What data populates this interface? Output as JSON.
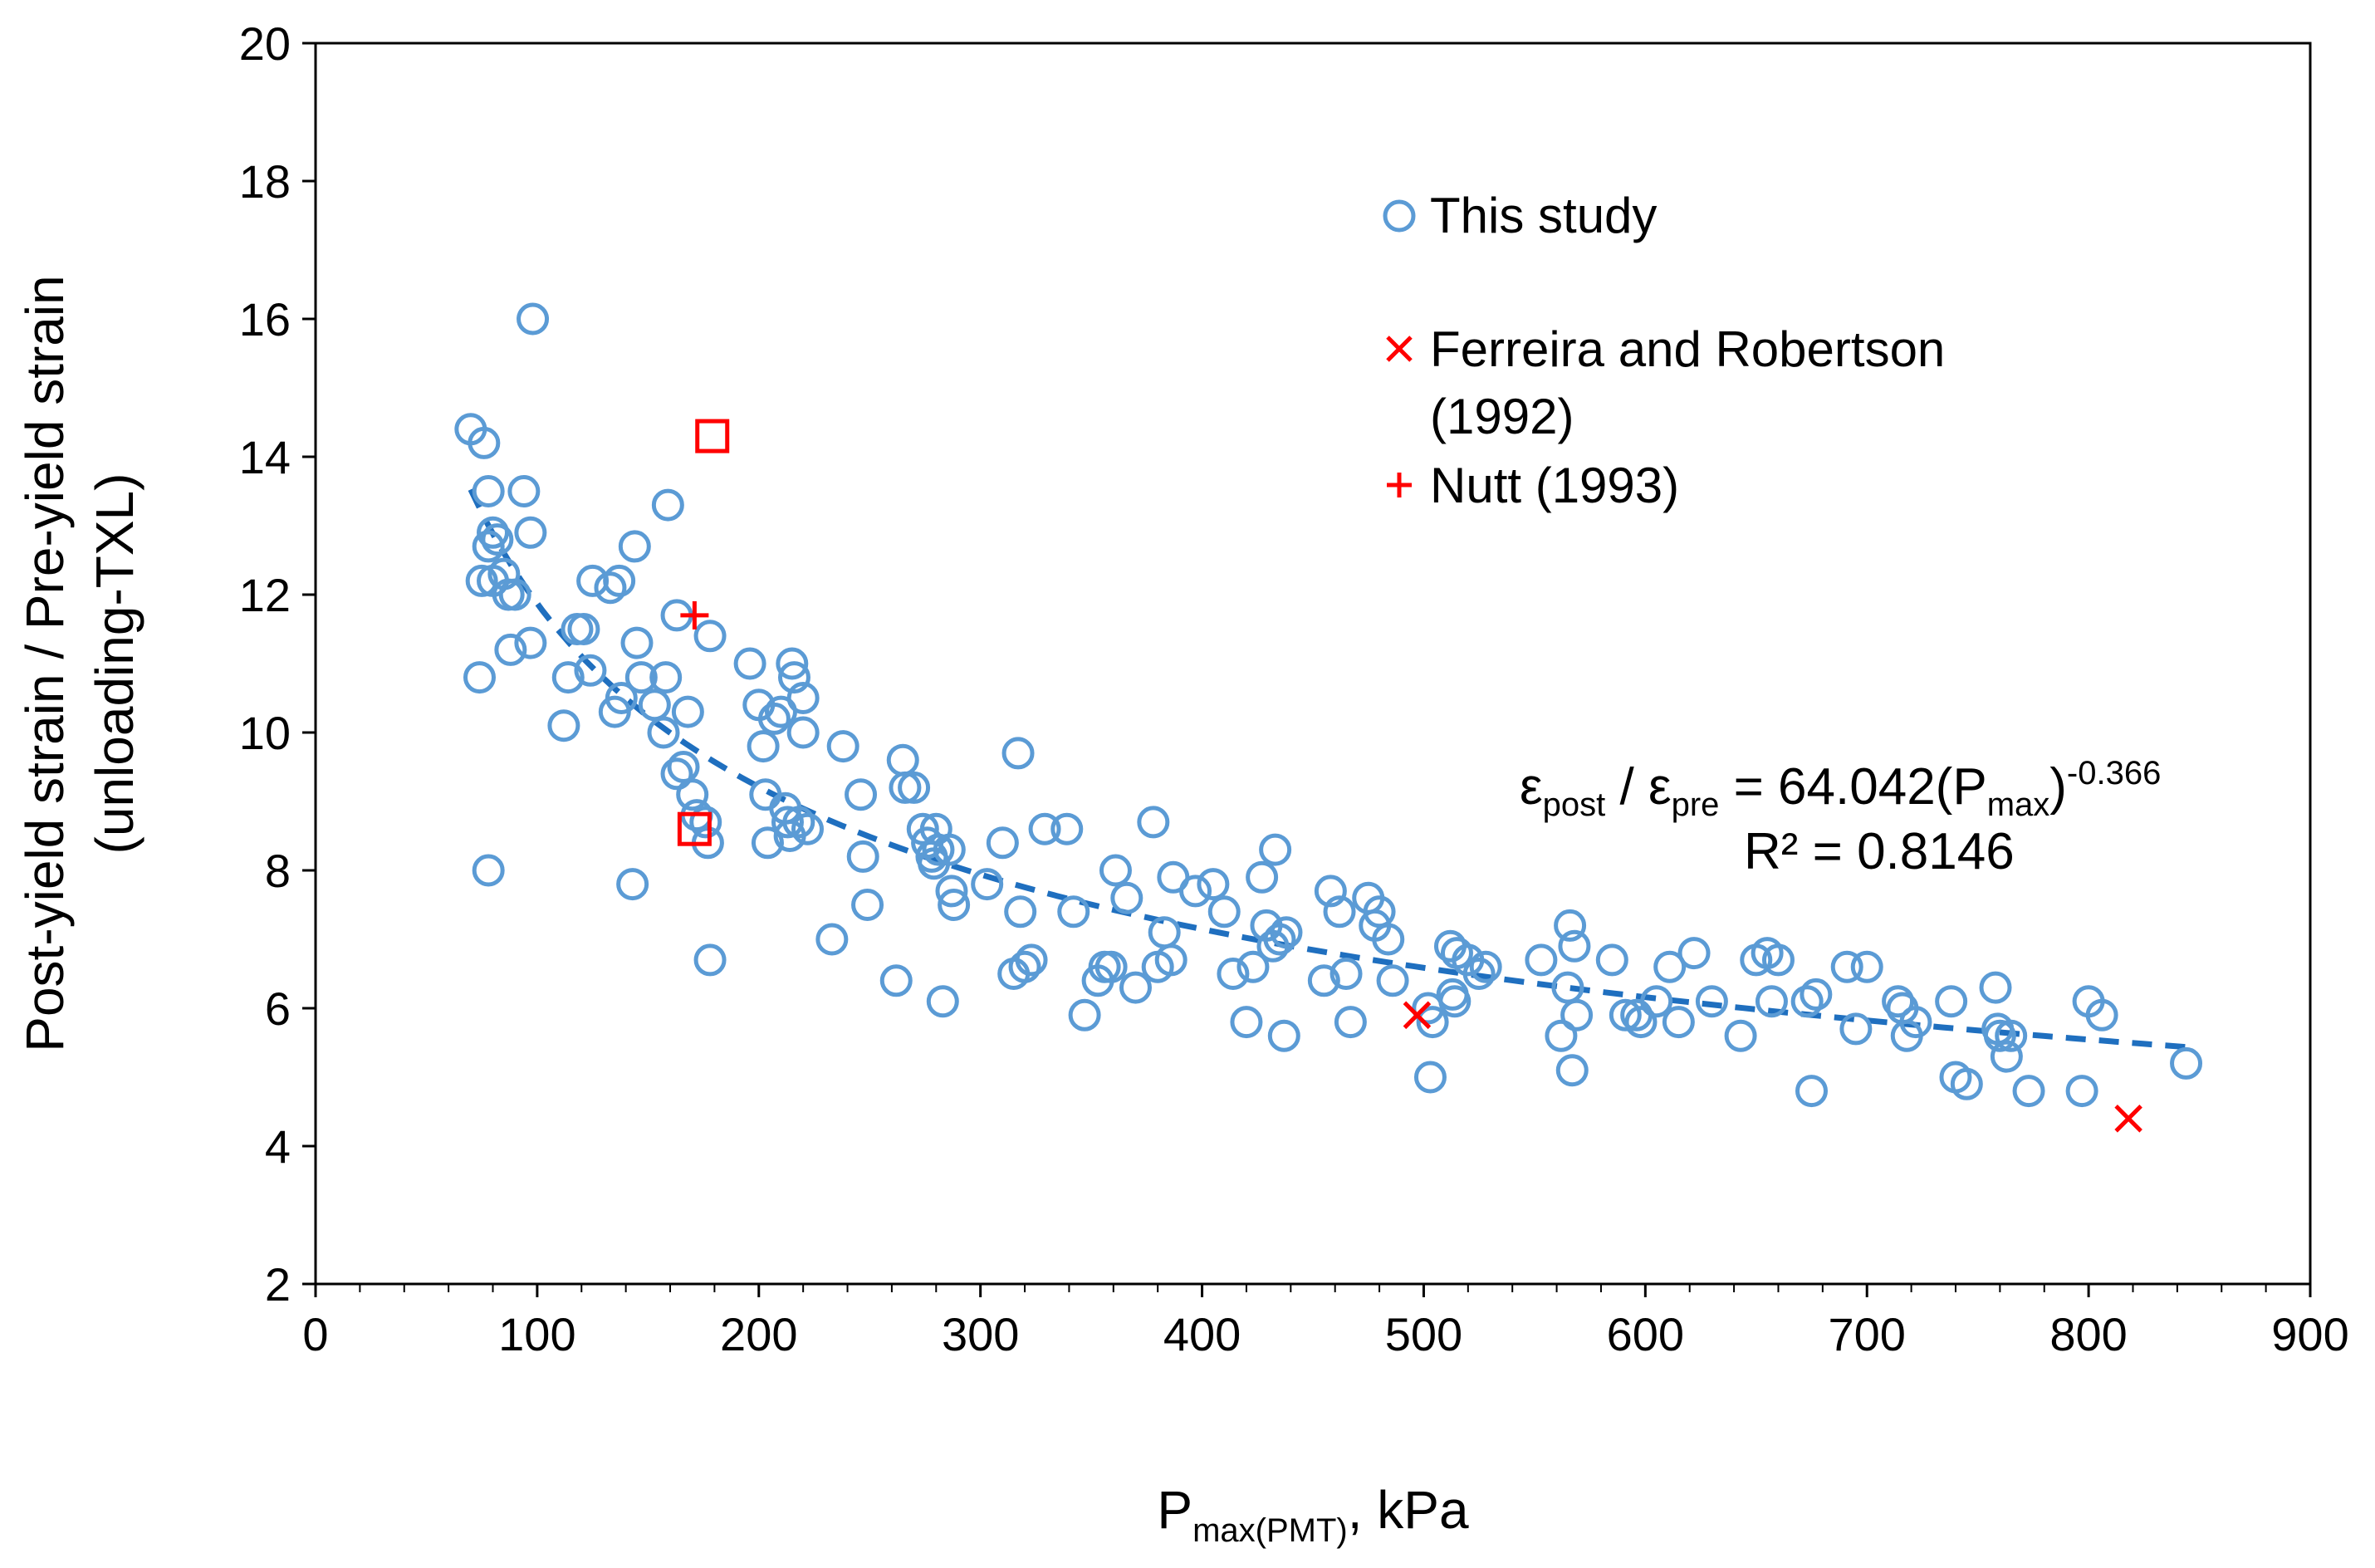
{
  "chart_data": {
    "type": "scatter",
    "title": "",
    "xlabel": {
      "main": "P",
      "sub": "max(PMT)",
      "suffix": ", kPa"
    },
    "ylabel": [
      "Post-yield strain / Pre-yield strain",
      "(unloading-TXL)"
    ],
    "xlim": [
      0,
      900
    ],
    "ylim": [
      2,
      20
    ],
    "xticks": [
      "0",
      "100",
      "200",
      "300",
      "400",
      "500",
      "600",
      "700",
      "800",
      "900"
    ],
    "yticks": [
      "2",
      "4",
      "6",
      "8",
      "10",
      "12",
      "14",
      "16",
      "18",
      "20"
    ],
    "grid": false,
    "legend_position": "top-right",
    "colors": {
      "study": "#5b9bd5",
      "trend": "#1f6fbf",
      "reference": "#ff0000"
    },
    "series": [
      {
        "name": "This study",
        "marker": "circle",
        "points": [
          [
            70,
            14.4
          ],
          [
            76,
            14.2
          ],
          [
            78,
            13.5
          ],
          [
            80,
            12.9
          ],
          [
            82,
            12.8
          ],
          [
            78,
            12.7
          ],
          [
            75,
            12.2
          ],
          [
            80,
            12.2
          ],
          [
            85,
            12.3
          ],
          [
            87,
            12.0
          ],
          [
            90,
            12.0
          ],
          [
            94,
            13.5
          ],
          [
            97,
            12.9
          ],
          [
            98,
            16.0
          ],
          [
            74,
            10.8
          ],
          [
            78,
            8.0
          ],
          [
            88,
            11.2
          ],
          [
            97,
            11.3
          ],
          [
            112,
            10.1
          ],
          [
            114,
            10.8
          ],
          [
            118,
            11.5
          ],
          [
            121,
            11.5
          ],
          [
            124,
            10.9
          ],
          [
            125,
            12.2
          ],
          [
            133,
            12.1
          ],
          [
            137,
            12.2
          ],
          [
            135,
            10.3
          ],
          [
            138,
            10.5
          ],
          [
            143,
            7.8
          ],
          [
            144,
            12.7
          ],
          [
            145,
            11.3
          ],
          [
            147,
            10.8
          ],
          [
            153,
            10.4
          ],
          [
            157,
            10.0
          ],
          [
            158,
            10.8
          ],
          [
            159,
            13.3
          ],
          [
            163,
            11.7
          ],
          [
            163,
            9.4
          ],
          [
            166,
            9.5
          ],
          [
            168,
            10.3
          ],
          [
            170,
            9.1
          ],
          [
            172,
            8.8
          ],
          [
            176,
            8.7
          ],
          [
            177,
            8.4
          ],
          [
            178,
            6.7
          ],
          [
            178,
            11.4
          ],
          [
            196,
            11.0
          ],
          [
            200,
            10.4
          ],
          [
            202,
            9.8
          ],
          [
            203,
            9.1
          ],
          [
            204,
            8.4
          ],
          [
            207,
            10.2
          ],
          [
            210,
            10.3
          ],
          [
            212,
            8.9
          ],
          [
            213,
            8.7
          ],
          [
            214,
            8.5
          ],
          [
            215,
            11.0
          ],
          [
            216,
            10.8
          ],
          [
            218,
            8.7
          ],
          [
            220,
            10.5
          ],
          [
            222,
            8.6
          ],
          [
            220,
            10.0
          ],
          [
            238,
            9.8
          ],
          [
            233,
            7.0
          ],
          [
            246,
            9.1
          ],
          [
            247,
            8.2
          ],
          [
            249,
            7.5
          ],
          [
            262,
            6.4
          ],
          [
            265,
            9.6
          ],
          [
            266,
            9.2
          ],
          [
            270,
            9.2
          ],
          [
            274,
            8.6
          ],
          [
            276,
            8.4
          ],
          [
            278,
            8.2
          ],
          [
            279,
            8.1
          ],
          [
            280,
            8.6
          ],
          [
            281,
            8.3
          ],
          [
            283,
            6.1
          ],
          [
            286,
            8.3
          ],
          [
            287,
            7.7
          ],
          [
            288,
            7.5
          ],
          [
            303,
            7.8
          ],
          [
            310,
            8.4
          ],
          [
            315,
            6.5
          ],
          [
            317,
            9.7
          ],
          [
            318,
            7.4
          ],
          [
            320,
            6.6
          ],
          [
            323,
            6.7
          ],
          [
            329,
            8.6
          ],
          [
            339,
            8.6
          ],
          [
            342,
            7.4
          ],
          [
            347,
            5.9
          ],
          [
            353,
            6.4
          ],
          [
            356,
            6.6
          ],
          [
            359,
            6.6
          ],
          [
            361,
            8.0
          ],
          [
            366,
            7.6
          ],
          [
            370,
            6.3
          ],
          [
            378,
            8.7
          ],
          [
            380,
            6.6
          ],
          [
            383,
            7.1
          ],
          [
            386,
            6.7
          ],
          [
            387,
            7.9
          ],
          [
            397,
            7.7
          ],
          [
            405,
            7.8
          ],
          [
            410,
            7.4
          ],
          [
            414,
            6.5
          ],
          [
            420,
            5.8
          ],
          [
            423,
            6.6
          ],
          [
            427,
            7.9
          ],
          [
            429,
            7.2
          ],
          [
            432,
            6.9
          ],
          [
            433,
            8.3
          ],
          [
            435,
            7.0
          ],
          [
            437,
            5.6
          ],
          [
            438,
            7.1
          ],
          [
            455,
            6.4
          ],
          [
            458,
            7.7
          ],
          [
            462,
            7.4
          ],
          [
            465,
            6.5
          ],
          [
            467,
            5.8
          ],
          [
            475,
            7.6
          ],
          [
            478,
            7.2
          ],
          [
            480,
            7.4
          ],
          [
            484,
            7.0
          ],
          [
            486,
            6.4
          ],
          [
            502,
            6.0
          ],
          [
            503,
            5.0
          ],
          [
            504,
            5.8
          ],
          [
            512,
            6.9
          ],
          [
            513,
            6.2
          ],
          [
            514,
            6.1
          ],
          [
            515,
            6.8
          ],
          [
            520,
            6.7
          ],
          [
            525,
            6.5
          ],
          [
            528,
            6.6
          ],
          [
            553,
            6.7
          ],
          [
            562,
            5.6
          ],
          [
            565,
            6.3
          ],
          [
            566,
            7.2
          ],
          [
            567,
            5.1
          ],
          [
            568,
            6.9
          ],
          [
            569,
            5.9
          ],
          [
            585,
            6.7
          ],
          [
            591,
            5.9
          ],
          [
            596,
            5.9
          ],
          [
            598,
            5.8
          ],
          [
            605,
            6.1
          ],
          [
            611,
            6.6
          ],
          [
            615,
            5.8
          ],
          [
            622,
            6.8
          ],
          [
            630,
            6.1
          ],
          [
            643,
            5.6
          ],
          [
            650,
            6.7
          ],
          [
            655,
            6.8
          ],
          [
            657,
            6.1
          ],
          [
            660,
            6.7
          ],
          [
            673,
            6.1
          ],
          [
            675,
            4.8
          ],
          [
            677,
            6.2
          ],
          [
            691,
            6.6
          ],
          [
            695,
            5.7
          ],
          [
            700,
            6.6
          ],
          [
            714,
            6.1
          ],
          [
            716,
            6.0
          ],
          [
            718,
            5.6
          ],
          [
            722,
            5.8
          ],
          [
            738,
            6.1
          ],
          [
            740,
            5.0
          ],
          [
            745,
            4.9
          ],
          [
            758,
            6.3
          ],
          [
            759,
            5.7
          ],
          [
            760,
            5.6
          ],
          [
            763,
            5.3
          ],
          [
            765,
            5.6
          ],
          [
            773,
            4.8
          ],
          [
            797,
            4.8
          ],
          [
            800,
            6.1
          ],
          [
            806,
            5.9
          ],
          [
            844,
            5.2
          ]
        ]
      },
      {
        "name": "Ferreira and Robertson (1992)",
        "legend_lines": [
          "Ferreira and Robertson",
          "(1992)"
        ],
        "marker": "x",
        "points": [
          [
            497,
            5.9
          ],
          [
            818,
            4.4
          ]
        ]
      },
      {
        "name": "Nutt (1993)",
        "marker": "plus",
        "points": [
          [
            171,
            11.7
          ]
        ]
      },
      {
        "name": "unlabeled reference",
        "marker": "square",
        "points": [
          [
            179,
            14.3
          ],
          [
            171,
            8.6
          ]
        ]
      }
    ],
    "trendline": {
      "type": "power",
      "coefficient": 64.042,
      "exponent": -0.366,
      "x_range": [
        70,
        844
      ]
    },
    "equation": {
      "eps1": "ε",
      "eps1_sub": "post",
      "slash": " / ",
      "eps2": "ε",
      "eps2_sub": "pre",
      "rhs": " = 64.042(P",
      "rhs_sub": "max",
      "close": ")",
      "exponent": "-0.366",
      "r2": "R² = 0.8146"
    }
  }
}
